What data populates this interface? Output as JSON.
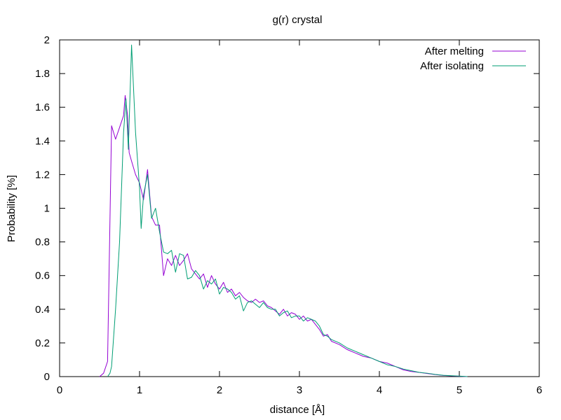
{
  "chart_data": {
    "type": "line",
    "title": "g(r) crystal",
    "xlabel": "distance [Å]",
    "ylabel": "Probability [%]",
    "xlim": [
      0,
      6
    ],
    "ylim": [
      0,
      2
    ],
    "xticks": [
      "0",
      "1",
      "2",
      "3",
      "4",
      "5",
      "6"
    ],
    "yticks": [
      "0",
      "0.2",
      "0.4",
      "0.6",
      "0.8",
      "1",
      "1.2",
      "1.4",
      "1.6",
      "1.8",
      "2"
    ],
    "grid": false,
    "legend_position": "top-right",
    "series": [
      {
        "name": "After melting",
        "color": "#9400d3",
        "points": [
          [
            0.5,
            0
          ],
          [
            0.55,
            0.02
          ],
          [
            0.6,
            0.09
          ],
          [
            0.65,
            1.49
          ],
          [
            0.7,
            1.41
          ],
          [
            0.75,
            1.48
          ],
          [
            0.8,
            1.55
          ],
          [
            0.82,
            1.67
          ],
          [
            0.85,
            1.55
          ],
          [
            0.87,
            1.33
          ],
          [
            0.9,
            1.28
          ],
          [
            0.95,
            1.2
          ],
          [
            1.0,
            1.15
          ],
          [
            1.05,
            1.05
          ],
          [
            1.1,
            1.23
          ],
          [
            1.15,
            0.95
          ],
          [
            1.2,
            0.9
          ],
          [
            1.25,
            0.9
          ],
          [
            1.3,
            0.6
          ],
          [
            1.35,
            0.7
          ],
          [
            1.4,
            0.66
          ],
          [
            1.45,
            0.72
          ],
          [
            1.5,
            0.66
          ],
          [
            1.55,
            0.69
          ],
          [
            1.6,
            0.73
          ],
          [
            1.65,
            0.64
          ],
          [
            1.7,
            0.61
          ],
          [
            1.75,
            0.58
          ],
          [
            1.8,
            0.61
          ],
          [
            1.85,
            0.53
          ],
          [
            1.9,
            0.6
          ],
          [
            1.95,
            0.55
          ],
          [
            2.0,
            0.52
          ],
          [
            2.05,
            0.56
          ],
          [
            2.1,
            0.5
          ],
          [
            2.15,
            0.52
          ],
          [
            2.2,
            0.48
          ],
          [
            2.25,
            0.5
          ],
          [
            2.3,
            0.47
          ],
          [
            2.35,
            0.45
          ],
          [
            2.4,
            0.44
          ],
          [
            2.45,
            0.46
          ],
          [
            2.5,
            0.44
          ],
          [
            2.55,
            0.45
          ],
          [
            2.6,
            0.42
          ],
          [
            2.65,
            0.41
          ],
          [
            2.7,
            0.39
          ],
          [
            2.75,
            0.37
          ],
          [
            2.8,
            0.4
          ],
          [
            2.85,
            0.36
          ],
          [
            2.9,
            0.38
          ],
          [
            2.95,
            0.37
          ],
          [
            3.0,
            0.34
          ],
          [
            3.05,
            0.36
          ],
          [
            3.1,
            0.33
          ],
          [
            3.15,
            0.34
          ],
          [
            3.2,
            0.31
          ],
          [
            3.25,
            0.28
          ],
          [
            3.3,
            0.24
          ],
          [
            3.35,
            0.25
          ],
          [
            3.4,
            0.21
          ],
          [
            3.5,
            0.19
          ],
          [
            3.6,
            0.16
          ],
          [
            3.7,
            0.14
          ],
          [
            3.8,
            0.12
          ],
          [
            3.9,
            0.11
          ],
          [
            4.0,
            0.09
          ],
          [
            4.1,
            0.08
          ],
          [
            4.2,
            0.06
          ],
          [
            4.3,
            0.04
          ],
          [
            4.4,
            0.03
          ],
          [
            4.5,
            0.025
          ],
          [
            4.6,
            0.018
          ],
          [
            4.7,
            0.012
          ],
          [
            4.8,
            0.007
          ],
          [
            4.9,
            0.004
          ],
          [
            5.0,
            0.002
          ],
          [
            5.1,
            0
          ]
        ]
      },
      {
        "name": "After isolating",
        "color": "#009e73",
        "points": [
          [
            0.6,
            0
          ],
          [
            0.63,
            0.02
          ],
          [
            0.65,
            0.06
          ],
          [
            0.7,
            0.4
          ],
          [
            0.75,
            0.8
          ],
          [
            0.8,
            1.45
          ],
          [
            0.83,
            1.65
          ],
          [
            0.86,
            1.35
          ],
          [
            0.9,
            1.97
          ],
          [
            0.95,
            1.45
          ],
          [
            1.0,
            1.12
          ],
          [
            1.02,
            0.88
          ],
          [
            1.05,
            1.08
          ],
          [
            1.1,
            1.2
          ],
          [
            1.15,
            0.94
          ],
          [
            1.2,
            1.0
          ],
          [
            1.25,
            0.86
          ],
          [
            1.3,
            0.74
          ],
          [
            1.35,
            0.73
          ],
          [
            1.4,
            0.75
          ],
          [
            1.45,
            0.62
          ],
          [
            1.5,
            0.73
          ],
          [
            1.55,
            0.72
          ],
          [
            1.6,
            0.58
          ],
          [
            1.65,
            0.59
          ],
          [
            1.7,
            0.63
          ],
          [
            1.75,
            0.6
          ],
          [
            1.8,
            0.52
          ],
          [
            1.85,
            0.57
          ],
          [
            1.9,
            0.55
          ],
          [
            1.95,
            0.58
          ],
          [
            2.0,
            0.49
          ],
          [
            2.05,
            0.53
          ],
          [
            2.1,
            0.52
          ],
          [
            2.15,
            0.5
          ],
          [
            2.2,
            0.46
          ],
          [
            2.25,
            0.48
          ],
          [
            2.3,
            0.39
          ],
          [
            2.35,
            0.44
          ],
          [
            2.4,
            0.45
          ],
          [
            2.45,
            0.43
          ],
          [
            2.5,
            0.41
          ],
          [
            2.55,
            0.44
          ],
          [
            2.6,
            0.41
          ],
          [
            2.65,
            0.4
          ],
          [
            2.7,
            0.4
          ],
          [
            2.75,
            0.36
          ],
          [
            2.8,
            0.38
          ],
          [
            2.85,
            0.39
          ],
          [
            2.9,
            0.35
          ],
          [
            2.95,
            0.36
          ],
          [
            3.0,
            0.36
          ],
          [
            3.05,
            0.33
          ],
          [
            3.1,
            0.35
          ],
          [
            3.15,
            0.34
          ],
          [
            3.2,
            0.33
          ],
          [
            3.25,
            0.3
          ],
          [
            3.3,
            0.25
          ],
          [
            3.35,
            0.24
          ],
          [
            3.4,
            0.22
          ],
          [
            3.5,
            0.2
          ],
          [
            3.6,
            0.17
          ],
          [
            3.7,
            0.15
          ],
          [
            3.8,
            0.13
          ],
          [
            3.9,
            0.11
          ],
          [
            4.0,
            0.09
          ],
          [
            4.1,
            0.07
          ],
          [
            4.2,
            0.06
          ],
          [
            4.3,
            0.045
          ],
          [
            4.4,
            0.035
          ],
          [
            4.5,
            0.025
          ],
          [
            4.6,
            0.02
          ],
          [
            4.7,
            0.013
          ],
          [
            4.8,
            0.008
          ],
          [
            4.9,
            0.005
          ],
          [
            5.0,
            0.003
          ],
          [
            5.1,
            0
          ]
        ]
      }
    ]
  }
}
